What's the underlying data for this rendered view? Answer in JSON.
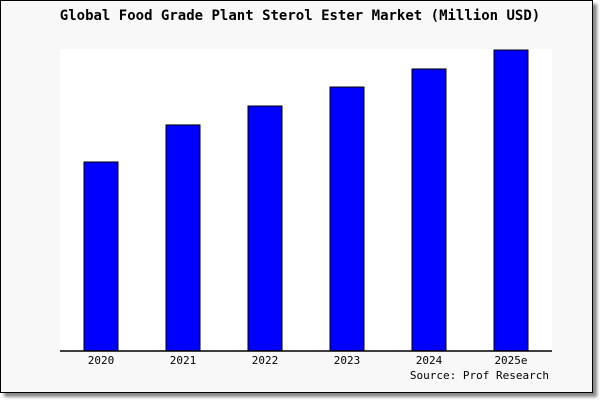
{
  "chart_data": {
    "type": "bar",
    "title": "Global Food Grade Plant Sterol Ester Market (Million USD)",
    "categories": [
      "2020",
      "2021",
      "2022",
      "2023",
      "2024",
      "2025e"
    ],
    "values_relative_to_max_percent": [
      62.8,
      75.1,
      81.4,
      87.7,
      93.7,
      100
    ],
    "ylim": [
      0,
      100
    ],
    "xlabel": "",
    "ylabel": "",
    "grid": false,
    "legend": "none",
    "source": "Source: Prof Research",
    "colors": {
      "bar": "#0000ff",
      "bar_outline": "#000000",
      "plot_bg": "#ffffff",
      "card_bg": "#f8f8f8"
    }
  }
}
